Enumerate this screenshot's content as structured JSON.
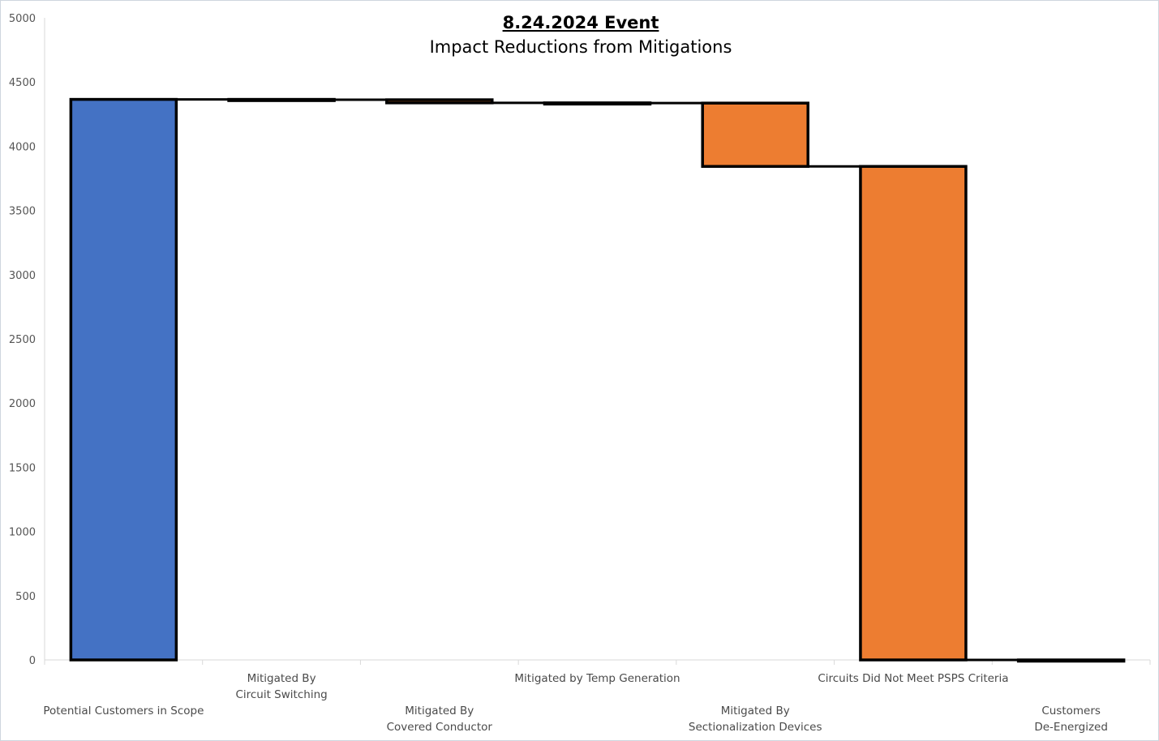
{
  "chart_data": {
    "type": "waterfall",
    "title": "8.24.2024 Event",
    "subtitle": "Impact Reductions from Mitigations",
    "ylim": [
      0,
      5000
    ],
    "yticks": [
      "0",
      "500",
      "1000",
      "1500",
      "2000",
      "2500",
      "3000",
      "3500",
      "4000",
      "4500",
      "5000"
    ],
    "categories": [
      [
        "Potential Customers in Scope"
      ],
      [
        "Mitigated By",
        "Circuit Switching"
      ],
      [
        "Mitigated By",
        "Covered Conductor"
      ],
      [
        "Mitigated by Temp Generation"
      ],
      [
        "Mitigated By",
        "Sectionalization Devices"
      ],
      [
        "Circuits Did Not Meet PSPS Criteria"
      ],
      [
        "Customers",
        "De-Energized"
      ]
    ],
    "label_rows": [
      1,
      0,
      1,
      0,
      1,
      0,
      1
    ],
    "bars": [
      {
        "kind": "total",
        "start": 0,
        "end": 4365,
        "color": "#4472c4"
      },
      {
        "kind": "delta",
        "start": 4365,
        "end": 4362,
        "color": "#ed7d31"
      },
      {
        "kind": "delta",
        "start": 4362,
        "end": 4338,
        "color": "#ed7d31"
      },
      {
        "kind": "delta",
        "start": 4338,
        "end": 4336,
        "color": "#ed7d31"
      },
      {
        "kind": "delta",
        "start": 4336,
        "end": 3843,
        "color": "#ed7d31"
      },
      {
        "kind": "delta",
        "start": 3843,
        "end": 0,
        "color": "#ed7d31"
      },
      {
        "kind": "total",
        "start": 0,
        "end": 0,
        "color": "#4472c4"
      }
    ],
    "grid": false,
    "legend": "none"
  }
}
